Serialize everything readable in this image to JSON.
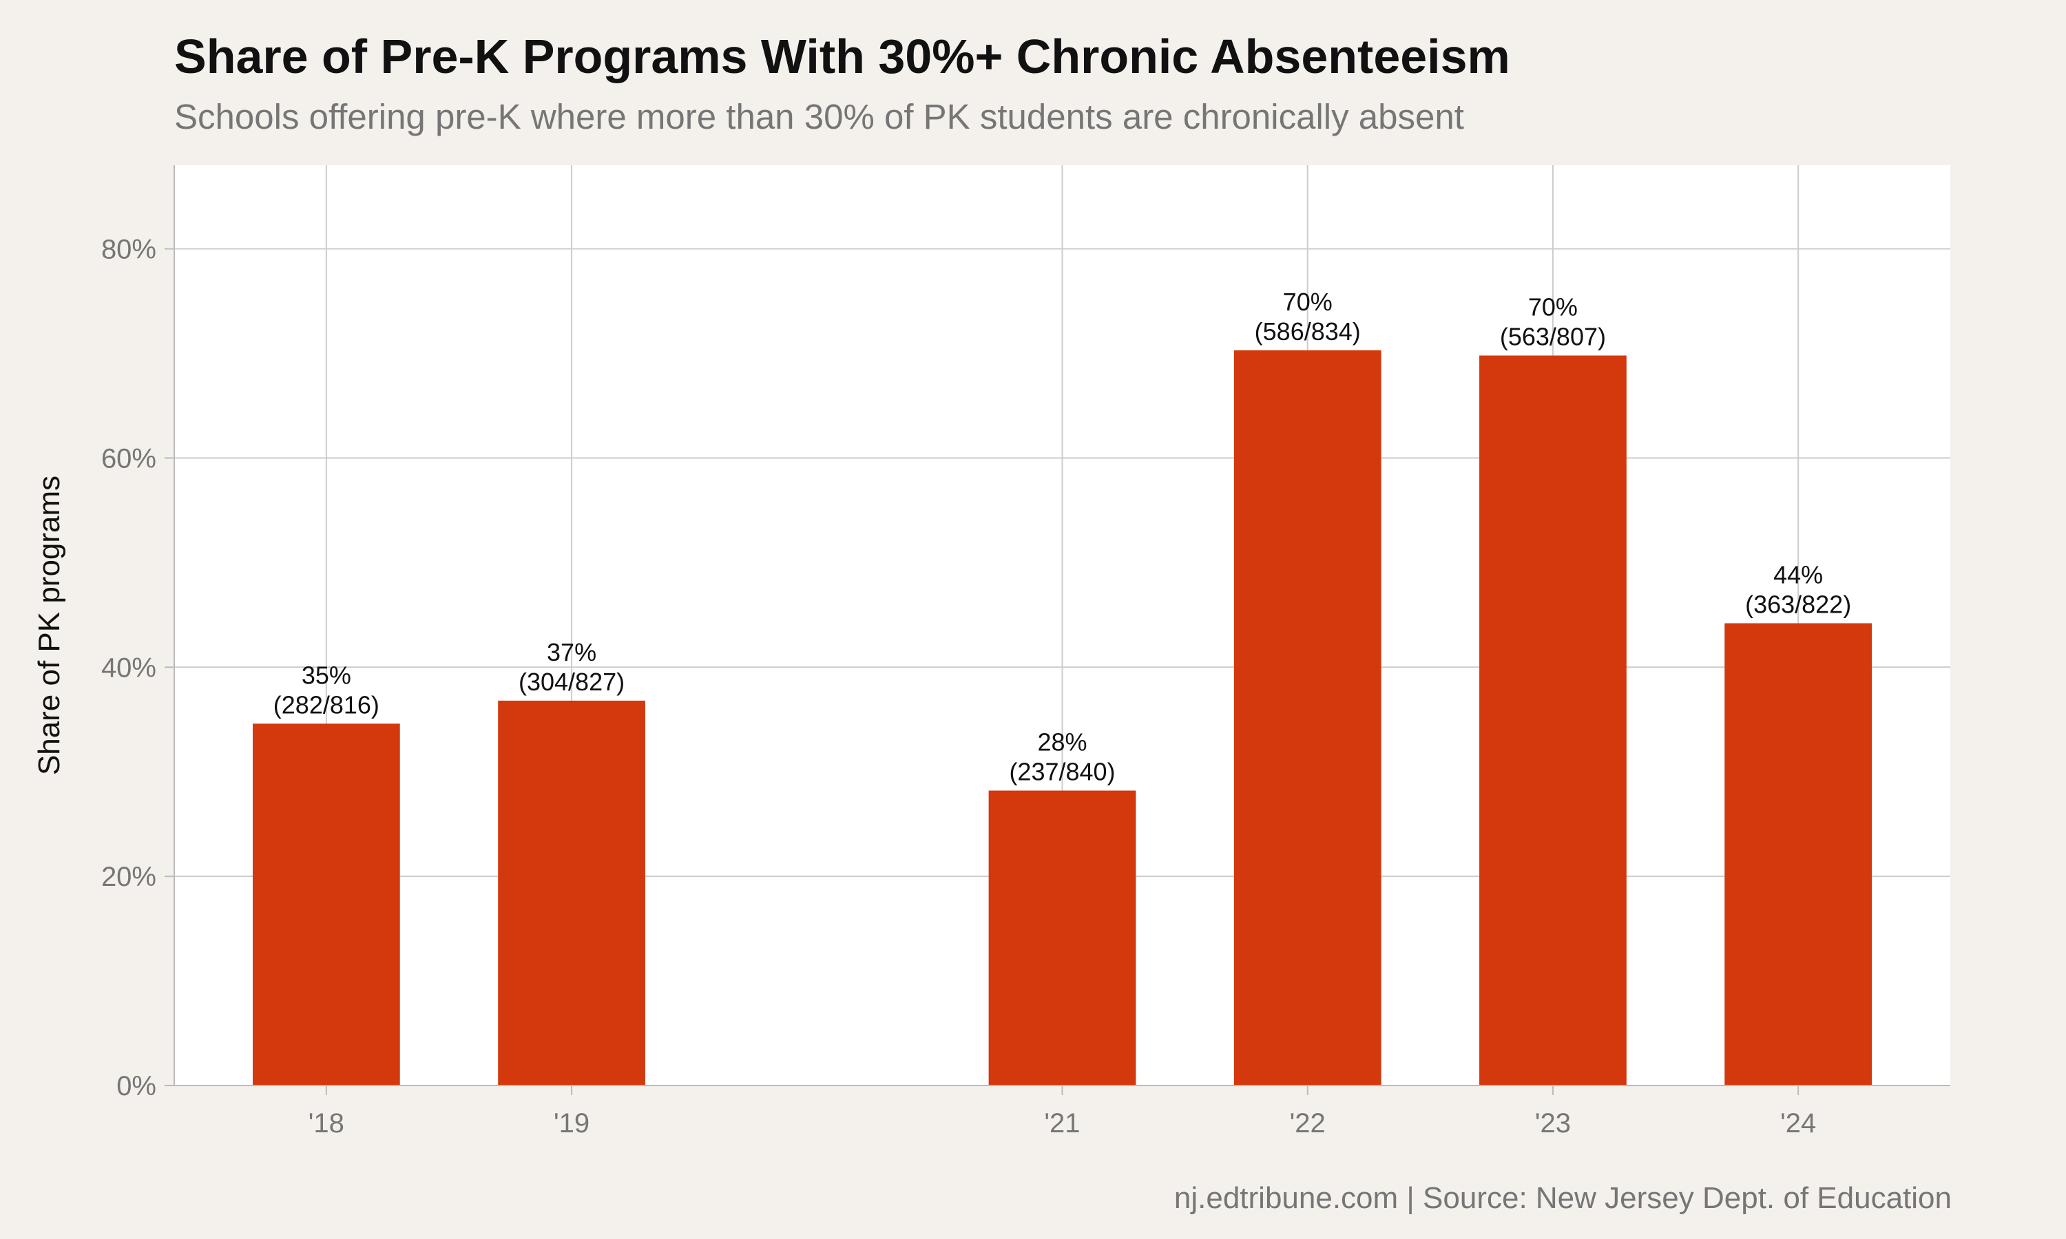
{
  "chart_data": {
    "type": "bar",
    "title": "Share of Pre-K Programs With 30%+ Chronic Absenteeism",
    "subtitle": "Schools offering pre-K where more than 30% of PK students are chronically absent",
    "caption": "nj.edtribune.com | Source: New Jersey Dept. of Education",
    "ylabel": "Share of PK programs",
    "ylim": [
      0,
      88
    ],
    "yticks": [
      0,
      20,
      40,
      60,
      80
    ],
    "ytick_labels": [
      "0%",
      "20%",
      "40%",
      "60%",
      "80%"
    ],
    "x_positions": [
      2018,
      2019,
      2021,
      2022,
      2023,
      2024
    ],
    "xlim": [
      2017.38,
      2024.62
    ],
    "categories": [
      "'18",
      "'19",
      "'21",
      "'22",
      "'23",
      "'24"
    ],
    "values": [
      34.6,
      36.8,
      28.2,
      70.3,
      69.8,
      44.2
    ],
    "labels": [
      "35%",
      "37%",
      "28%",
      "70%",
      "70%",
      "44%"
    ],
    "counts": [
      "(282/816)",
      "(304/827)",
      "(237/840)",
      "(586/834)",
      "(563/807)",
      "(363/822)"
    ],
    "grid": true,
    "legend": "none",
    "bar_color": "#d4380d",
    "panel_color": "#ffffff",
    "background_color": "#f4f1ec",
    "grid_color": "#cccccc"
  }
}
